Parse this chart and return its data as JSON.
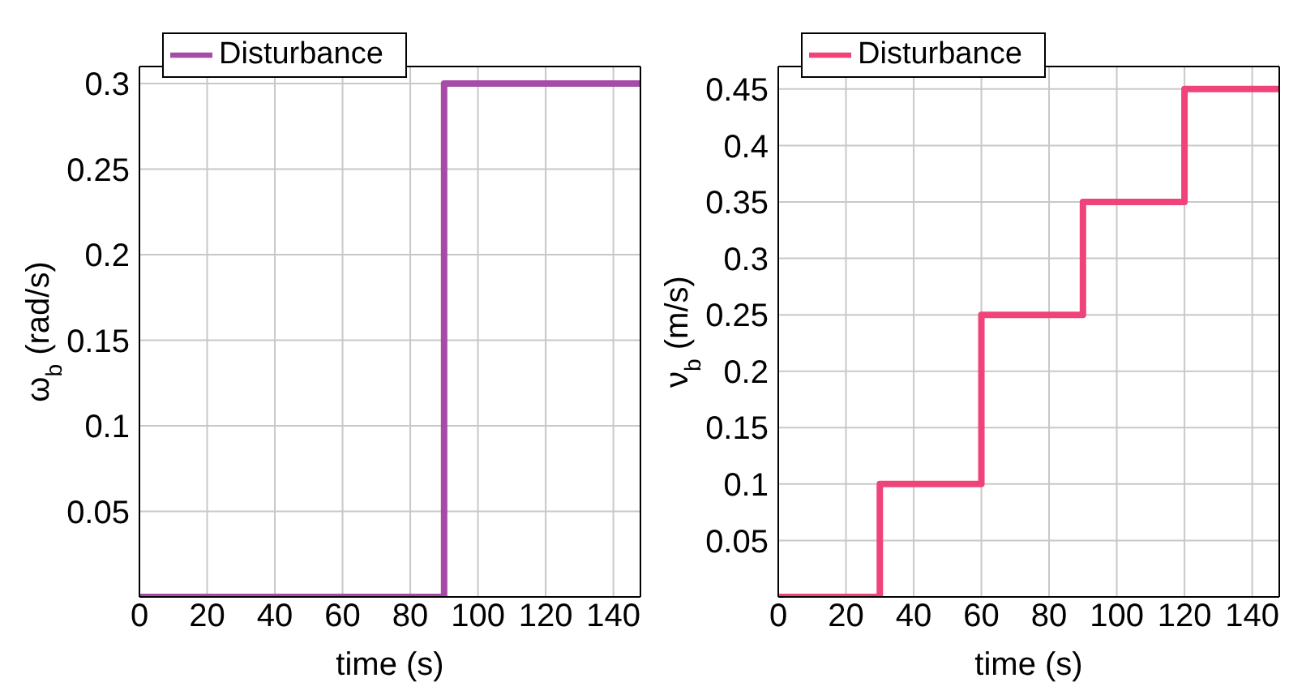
{
  "chart_data": [
    {
      "type": "step",
      "xlabel": "time (s)",
      "ylabel": "ω$_{b}$ (rad/s)",
      "x": [
        0,
        30,
        60,
        90,
        120,
        148
      ],
      "series": [
        {
          "name": "Disturbance",
          "color": "#a64ca6",
          "values": [
            0,
            0,
            0,
            0.3,
            0.3,
            0.3
          ]
        }
      ],
      "xlim": [
        0,
        148
      ],
      "xticks": [
        0,
        20,
        40,
        60,
        80,
        100,
        120,
        140
      ],
      "ylim": [
        0,
        0.31
      ],
      "yticks": [
        0.05,
        0.1,
        0.15,
        0.2,
        0.25,
        0.3
      ],
      "grid": true,
      "legend": "top left",
      "marker": "none",
      "line_style": "solid"
    },
    {
      "type": "step",
      "xlabel": "time (s)",
      "ylabel": "ν$_{b}$ (m/s)",
      "x": [
        0,
        30,
        60,
        90,
        120,
        148
      ],
      "series": [
        {
          "name": "Disturbance",
          "color": "#f0437a",
          "values": [
            0,
            0.1,
            0.25,
            0.35,
            0.45,
            0.45
          ]
        }
      ],
      "xlim": [
        0,
        148
      ],
      "xticks": [
        0,
        20,
        40,
        60,
        80,
        100,
        120,
        140
      ],
      "ylim": [
        0,
        0.47
      ],
      "yticks": [
        0.05,
        0.1,
        0.15,
        0.2,
        0.25,
        0.3,
        0.35,
        0.4,
        0.45
      ],
      "grid": true,
      "legend": "top left",
      "marker": "none",
      "line_style": "solid"
    }
  ]
}
